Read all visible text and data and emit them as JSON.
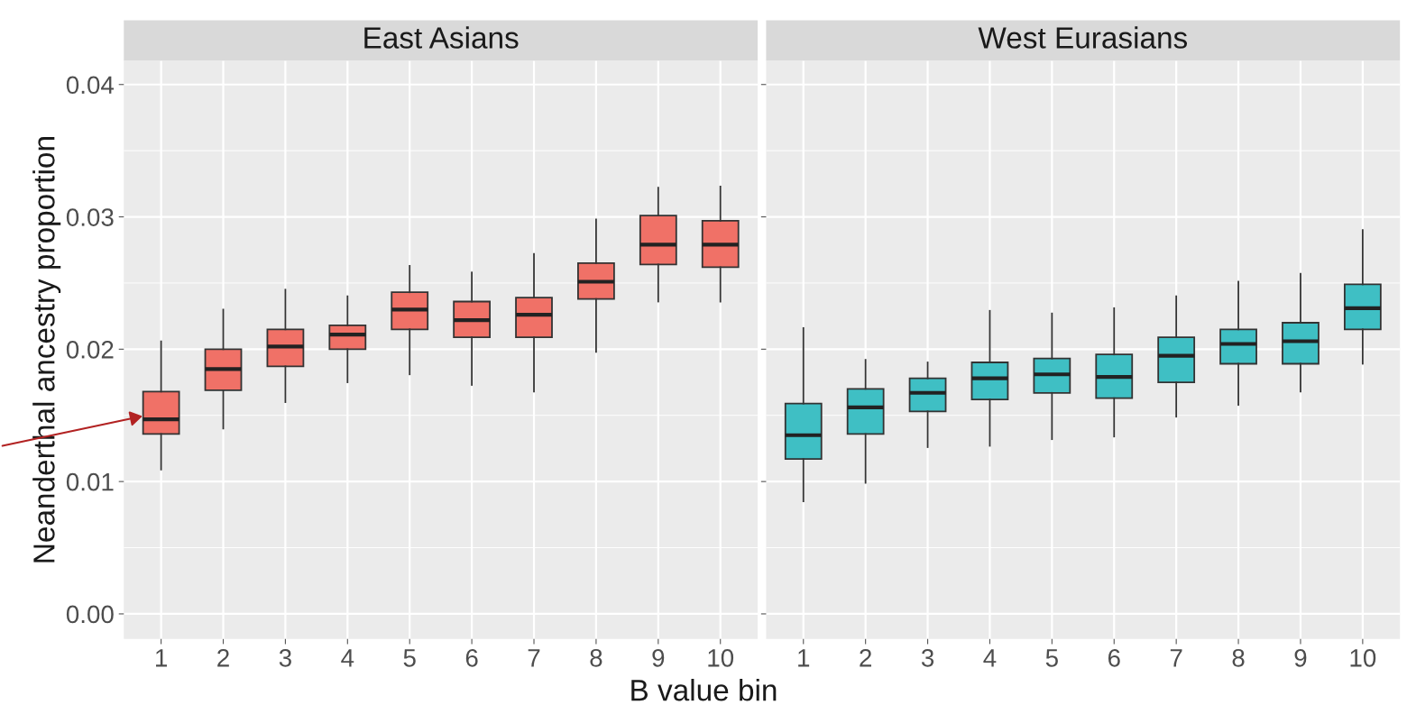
{
  "chart_data": [
    {
      "type": "box",
      "title": "East Asians",
      "ylabel": "Neanderthal ancestry proportion",
      "xlabel": "B value bin",
      "categories": [
        "1",
        "2",
        "3",
        "4",
        "5",
        "6",
        "7",
        "8",
        "9",
        "10"
      ],
      "color": "#f07167",
      "ylim": [
        -0.0019,
        0.0418
      ],
      "yticks": [
        {
          "value": 0.0,
          "label": "0.00"
        },
        {
          "value": 0.01,
          "label": "0.01"
        },
        {
          "value": 0.02,
          "label": "0.02"
        },
        {
          "value": 0.03,
          "label": "0.03"
        },
        {
          "value": 0.04,
          "label": "0.04"
        }
      ],
      "grid": true,
      "boxes": [
        {
          "low": 0.0109,
          "q1": 0.0136,
          "median": 0.0147,
          "q3": 0.0168,
          "high": 0.0206
        },
        {
          "low": 0.014,
          "q1": 0.0169,
          "median": 0.0185,
          "q3": 0.02,
          "high": 0.023
        },
        {
          "low": 0.016,
          "q1": 0.0187,
          "median": 0.0202,
          "q3": 0.0215,
          "high": 0.0245
        },
        {
          "low": 0.0175,
          "q1": 0.02,
          "median": 0.0211,
          "q3": 0.0218,
          "high": 0.024
        },
        {
          "low": 0.0181,
          "q1": 0.0215,
          "median": 0.023,
          "q3": 0.0243,
          "high": 0.0263
        },
        {
          "low": 0.0173,
          "q1": 0.0209,
          "median": 0.0222,
          "q3": 0.0236,
          "high": 0.0258
        },
        {
          "low": 0.0168,
          "q1": 0.0209,
          "median": 0.0226,
          "q3": 0.0239,
          "high": 0.0272
        },
        {
          "low": 0.0198,
          "q1": 0.0238,
          "median": 0.0251,
          "q3": 0.0265,
          "high": 0.0298
        },
        {
          "low": 0.0236,
          "q1": 0.0264,
          "median": 0.0279,
          "q3": 0.0301,
          "high": 0.0322
        },
        {
          "low": 0.0236,
          "q1": 0.0262,
          "median": 0.0279,
          "q3": 0.0297,
          "high": 0.0323
        }
      ]
    },
    {
      "type": "box",
      "title": "West Eurasians",
      "categories": [
        "1",
        "2",
        "3",
        "4",
        "5",
        "6",
        "7",
        "8",
        "9",
        "10"
      ],
      "color": "#3fbfc4",
      "ylim": [
        -0.0019,
        0.0418
      ],
      "yticks": [
        0.0,
        0.01,
        0.02,
        0.03,
        0.04
      ],
      "grid": true,
      "tick_labels": "x",
      "boxes": [
        {
          "low": 0.0085,
          "q1": 0.0117,
          "median": 0.0135,
          "q3": 0.0159,
          "high": 0.0216
        },
        {
          "low": 0.0099,
          "q1": 0.0136,
          "median": 0.0156,
          "q3": 0.017,
          "high": 0.0192
        },
        {
          "low": 0.0126,
          "q1": 0.0153,
          "median": 0.0167,
          "q3": 0.0178,
          "high": 0.019
        },
        {
          "low": 0.0127,
          "q1": 0.0162,
          "median": 0.0178,
          "q3": 0.019,
          "high": 0.0229
        },
        {
          "low": 0.0132,
          "q1": 0.0167,
          "median": 0.0181,
          "q3": 0.0193,
          "high": 0.0227
        },
        {
          "low": 0.0134,
          "q1": 0.0163,
          "median": 0.0179,
          "q3": 0.0196,
          "high": 0.0231
        },
        {
          "low": 0.0149,
          "q1": 0.0175,
          "median": 0.0195,
          "q3": 0.0209,
          "high": 0.024
        },
        {
          "low": 0.0158,
          "q1": 0.0189,
          "median": 0.0204,
          "q3": 0.0215,
          "high": 0.0251
        },
        {
          "low": 0.0168,
          "q1": 0.0189,
          "median": 0.0206,
          "q3": 0.022,
          "high": 0.0257
        },
        {
          "low": 0.0189,
          "q1": 0.0215,
          "median": 0.0231,
          "q3": 0.0249,
          "high": 0.029
        }
      ]
    }
  ]
}
